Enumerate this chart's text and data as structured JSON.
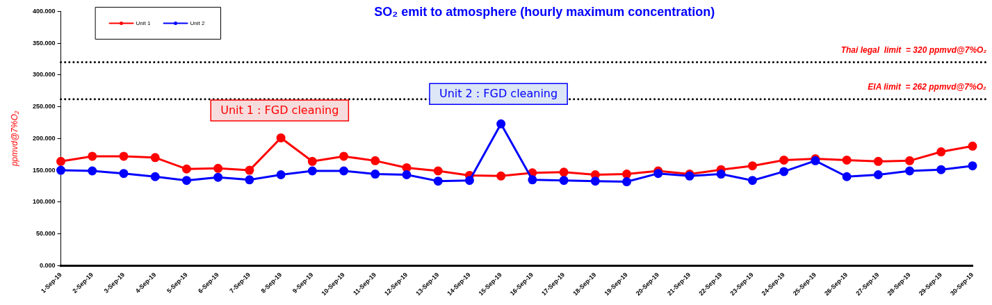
{
  "chart_data": {
    "type": "line",
    "title": "SO₂ emit to atmosphere (hourly maximum concentration)",
    "ylabel": "ppmvd@7%O₂",
    "categories": [
      "1-Sep-19",
      "2-Sep-19",
      "3-Sep-19",
      "4-Sep-19",
      "5-Sep-19",
      "6-Sep-19",
      "7-Sep-19",
      "8-Sep-19",
      "9-Sep-19",
      "10-Sep-19",
      "11-Sep-19",
      "12-Sep-19",
      "13-Sep-19",
      "14-Sep-19",
      "15-Sep-19",
      "16-Sep-19",
      "17-Sep-19",
      "18-Sep-19",
      "19-Sep-19",
      "20-Sep-19",
      "21-Sep-19",
      "22-Sep-19",
      "23-Sep-19",
      "24-Sep-19",
      "25-Sep-19",
      "26-Sep-19",
      "27-Sep-19",
      "28-Sep-19",
      "29-Sep-19",
      "30-Sep-19"
    ],
    "series": [
      {
        "name": "Unit 1",
        "color": "#ff0000",
        "values": [
          164,
          172,
          172,
          170,
          152,
          153,
          150,
          201,
          164,
          172,
          165,
          154,
          149,
          142,
          141,
          146,
          147,
          143,
          144,
          149,
          144,
          151,
          157,
          166,
          168,
          166,
          164,
          165,
          179,
          188
        ]
      },
      {
        "name": "Unit 2",
        "color": "#0000ff",
        "values": [
          150,
          149,
          145,
          140,
          134,
          139,
          135,
          143,
          149,
          149,
          144,
          143,
          133,
          134,
          223,
          135,
          134,
          133,
          132,
          145,
          141,
          144,
          134,
          148,
          165,
          140,
          143,
          149,
          151,
          157
        ]
      }
    ],
    "ylim": [
      0,
      400
    ],
    "yticks": [
      {
        "value": 0,
        "label": "0.000"
      },
      {
        "value": 50,
        "label": "50.000"
      },
      {
        "value": 100,
        "label": "100.000"
      },
      {
        "value": 150,
        "label": "150.000"
      },
      {
        "value": 200,
        "label": "200.000"
      },
      {
        "value": 250,
        "label": "250.000"
      },
      {
        "value": 300,
        "label": "300.000"
      },
      {
        "value": 350,
        "label": "350.000"
      },
      {
        "value": 400,
        "label": "400.000"
      }
    ],
    "ref_lines": [
      {
        "axis": "y",
        "value": 320,
        "label": "Thai legal  limit  = 320 ppmvd@7%O₂",
        "color": "#000000",
        "line_style": "dotted"
      },
      {
        "axis": "y",
        "value": 262,
        "label": "EIA limit  = 262 ppmvd@7%O₂",
        "color": "#000000",
        "line_style": "dotted"
      }
    ],
    "annotations": [
      "Unit 1 : FGD cleaning",
      "Unit 2 : FGD cleaning"
    ],
    "legend": "top left",
    "grid": false,
    "marker": "circle",
    "line_style": "solid"
  }
}
